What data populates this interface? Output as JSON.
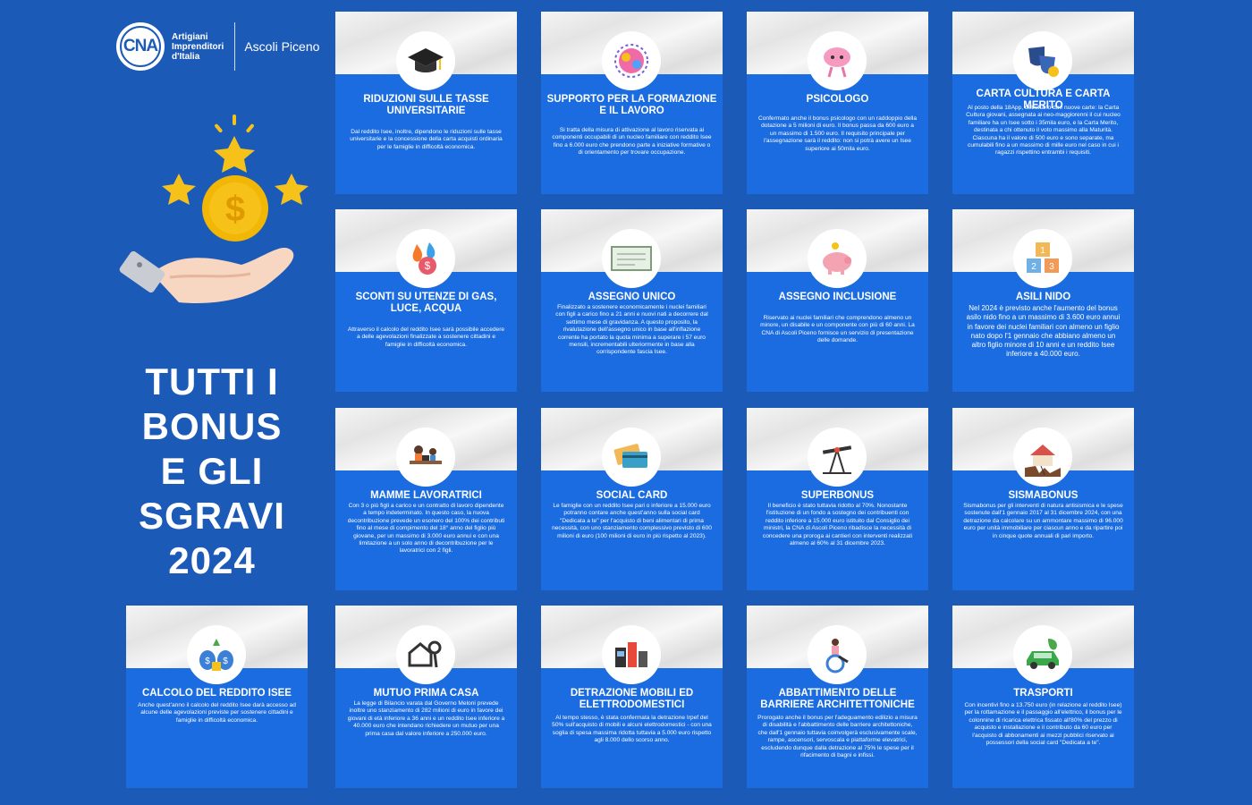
{
  "header": {
    "logo_letters": "CNA",
    "logo_tag": [
      "Artigiani",
      "Imprenditori",
      "d'Italia"
    ],
    "city": "Ascoli Piceno"
  },
  "title_lines": [
    "TUTTI I",
    "BONUS",
    "E GLI",
    "SGRAVI",
    "2024"
  ],
  "colors": {
    "background": "#1c5ab8",
    "card_blue": "#1a6ce0",
    "star_gold": "#f6c21a"
  },
  "cards": [
    {
      "icon": "graduation-cap-icon",
      "title": "RIDUZIONI SULLE TASSE UNIVERSITARIE",
      "text": "Dal reddito Isee, inoltre, dipendono le riduzioni sulle tasse universitarie e la concessione della carta acquisti ordinaria per le famiglie in difficoltà economica."
    },
    {
      "icon": "brain-gears-icon",
      "title": "SUPPORTO PER LA FORMAZIONE E IL LAVORO",
      "text": "Si tratta della misura di attivazione al lavoro riservata ai componenti occupabili di un nucleo familiare con reddito Isee fino a 6.000 euro che prendono parte a iniziative formative o di orientamento per trovare occupazione."
    },
    {
      "icon": "brain-character-icon",
      "title": "PSICOLOGO",
      "text": "Confermato anche il bonus psicologo con un raddoppio della dotazione a 5 milioni di euro. Il bonus passa da 600 euro a un massimo di 1.500 euro. Il requisito principale per l'assegnazione sarà il reddito: non si potrà avere un Isee superiore ai 50mila euro."
    },
    {
      "icon": "theater-masks-icon",
      "title": "CARTA CULTURA E CARTA MERITO",
      "text": "Al posto della 18App, debuttano due nuove carte: la Carta Cultura giovani, assegnata ai neo-maggiorenni il cui nucleo familiare ha un Isee sotto i 35mila euro, e la Carta Merito, destinata a chi ottenuto il voto massimo alla Maturità. Ciascuna ha il valore di 500 euro e sono separate, ma cumulabili fino a un massimo di mille euro nel caso in cui i ragazzi rispettino entrambi i requisiti."
    },
    {
      "icon": "utilities-icon",
      "title": "SCONTI SU UTENZE DI GAS, LUCE, ACQUA",
      "text": "Attraverso il calcolo del reddito Isee sarà possibile accedere a delle agevolazioni finalizzate a sostenere cittadini e famiglie in difficoltà economica."
    },
    {
      "icon": "cheque-icon",
      "title": "ASSEGNO UNICO",
      "text": "Finalizzato a sostenere economicamente i nuclei familiari con figli a carico fino a 21 anni e nuovi nati a decorrere dal settimo mese di gravidanza. A questo proposito, la rivalutazione dell'assegno unico in base all'inflazione corrente ha portato la quota minima a superare i 57 euro mensili, incrementabili ulteriormente in base alla corrispondente fascia Isee."
    },
    {
      "icon": "piggy-bank-icon",
      "title": "ASSEGNO INCLUSIONE",
      "text": "Riservato ai nuclei familiari che comprendono almeno un minore, un disabile e un componente con più di 60 anni. La CNA di Ascoli Piceno fornisce un servizio di presentazione delle domande."
    },
    {
      "icon": "toy-blocks-icon",
      "title": "ASILI NIDO",
      "text": "Nel 2024 è previsto anche l'aumento del bonus asilo nido fino a un massimo di 3.600 euro annui in favore dei nuclei familiari con almeno un figlio nato dopo l'1 gennaio che abbiano almeno un altro figlio minore di 10 anni e un reddito Isee inferiore a 40.000 euro."
    },
    {
      "icon": "mother-working-icon",
      "title": "MAMME LAVORATRICI",
      "text": "Con 3 o più figli a carico e un contratto di lavoro dipendente a tempo indeterminato. In questo caso, la nuova decontribuzione prevede un esonero del 100% dei contributi fino al mese di compimento del 18° anno del figlio più giovane, per un massimo di 3.000 euro annui e con una limitazione a un solo anno di decontribuzione per le lavoratrici con 2 figli."
    },
    {
      "icon": "cards-icon",
      "title": "SOCIAL CARD",
      "text": "Le famiglie con un reddito Isee pari o inferiore a 15.000 euro potranno contare anche quest'anno sulla social card \"Dedicata a te\" per l'acquisto di beni alimentari di prima necessità, con uno stanziamento complessivo previsto di 600 milioni di euro (100 milioni di euro in più rispetto al 2023)."
    },
    {
      "icon": "oil-pump-icon",
      "title": "SUPERBONUS",
      "text": "Il beneficio è stato tuttavia ridotto al 70%. Nonostante l'istituzione di un fondo a sostegno dei contribuenti con reddito inferiore a 15.000 euro istituito dal Consiglio dei ministri, la CNA di Ascoli Piceno ribadisce la necessità di concedere una proroga ai cantieri con interventi realizzati almeno al 60% al 31 dicembre 2023."
    },
    {
      "icon": "earthquake-house-icon",
      "title": "SISMABONUS",
      "text": "Sismabonus per gli interventi di natura antisismica e le spese sostenute dall'1 gennaio 2017 al 31 dicembre 2024, con una detrazione da calcolare su un ammontare massimo di 96.000 euro per unità immobiliare per ciascun anno e da ripartire poi in cinque quote annuali di pari importo."
    },
    {
      "icon": "money-bags-icon",
      "title": "CALCOLO DEL REDDITO ISEE",
      "text": "Anche quest'anno il calcolo del reddito Isee darà accesso ad alcune delle agevolazioni previste per sostenere cittadini e famiglie in difficoltà economica."
    },
    {
      "icon": "house-keys-icon",
      "title": "MUTUO PRIMA CASA",
      "text": "La legge di Bilancio varata dal Governo Meloni prevede inoltre uno stanziamento di 282 milioni di euro in favore dei giovani di età inferiore a 36 anni e un reddito Isee inferiore a 40.000 euro che intendano richiedere un mutuo per una prima casa dal valore inferiore a 250.000 euro."
    },
    {
      "icon": "appliances-icon",
      "title": "DETRAZIONE MOBILI ED ELETTRODOMESTICI",
      "text": "Al tempo stesso, è stata confermata la detrazione Irpef del 50% sull'acquisto di mobili e alcuni elettrodomestici - con una soglia di spesa massima ridotta tuttavia a 5.000 euro rispetto agli 8.000 dello scorso anno."
    },
    {
      "icon": "wheelchair-icon",
      "title": "ABBATTIMENTO DELLE BARRIERE ARCHITETTONICHE",
      "text": "Prorogato anche il bonus per l'adeguamento edilizio a misura di disabilità e l'abbattimento delle barriere architettoniche, che dall'1 gennaio tuttavia coinvolgerà esclusivamente scale, rampe, ascensori, servoscala e piattaforme elevatrici, escludendo dunque dalla detrazione al 75% le spese per il rifacimento di bagni e infissi."
    },
    {
      "icon": "electric-car-icon",
      "title": "TRASPORTI",
      "text": "Con incentivi fino a 13.750 euro (in relazione al reddito Isee) per la rottamazione e il passaggio all'elettrico, il bonus per le colonnine di ricarica elettrica fissato all'80% del prezzo di acquisto e installazione e il contributo da 60 euro per l'acquisto di abbonamenti ai mezzi pubblici riservato ai possessori della social card \"Dedicata a te\"."
    }
  ]
}
